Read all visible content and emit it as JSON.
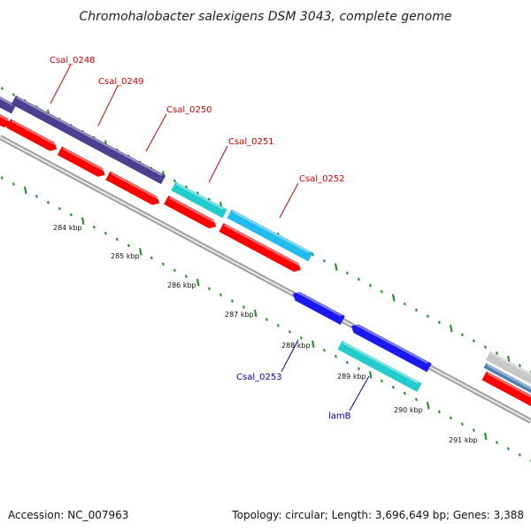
{
  "title": "Chromohalobacter salexigens DSM 3043, complete genome",
  "footer": {
    "accession": "Accession: NC_007963",
    "topology": "Topology: circular; Length: 3,696,649 bp; Genes: 3,388"
  },
  "colors": {
    "cds_red": "#ff0000",
    "cds_dark_violet": "#4b3f8f",
    "cds_cyan": "#22cccc",
    "cds_sky": "#22bbee",
    "cds_blue": "#1a1aee",
    "cds_steel": "#4f7fb2",
    "backbone": "#888888",
    "tick_green": "#1a8c1a",
    "label_red": "#cc0000",
    "label_blue": "#0000aa"
  },
  "kbp_labels": [
    "284 kbp",
    "285 kbp",
    "286 kbp",
    "287 kbp",
    "288 kbp",
    "289 kbp",
    "290 kbp",
    "291 kbp"
  ],
  "gene_labels": [
    {
      "name": "Csal_0248",
      "color": "red"
    },
    {
      "name": "Csal_0249",
      "color": "red"
    },
    {
      "name": "Csal_0250",
      "color": "red"
    },
    {
      "name": "Csal_0251",
      "color": "red"
    },
    {
      "name": "Csal_0252",
      "color": "red"
    },
    {
      "name": "Csal_0253",
      "color": "blue"
    },
    {
      "name": "lamB",
      "color": "blue"
    }
  ]
}
